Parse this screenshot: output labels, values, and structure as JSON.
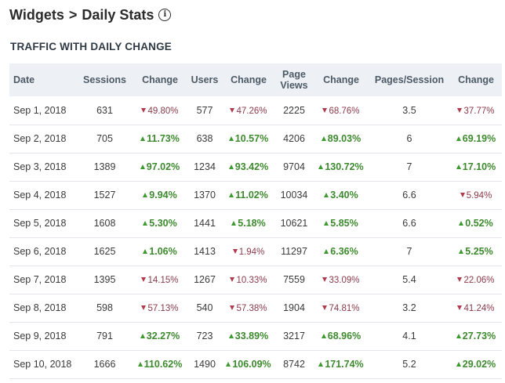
{
  "header": {
    "crumb_parent": "Widgets",
    "crumb_separator": ">",
    "crumb_current": "Daily Stats",
    "info_glyph": "i"
  },
  "section_title": "TRAFFIC WITH DAILY CHANGE",
  "colors": {
    "up": "#3d8a2e",
    "down": "#8a3a4a",
    "header_bg": "#edf1f5"
  },
  "table": {
    "columns": [
      "Date",
      "Sessions",
      "Change",
      "Users",
      "Change",
      "Page Views",
      "Change",
      "Pages/Session",
      "Change"
    ],
    "rows": [
      {
        "date": "Sep 1, 2018",
        "sessions": "631",
        "sessions_chg": "49.80%",
        "sessions_dir": "down",
        "users": "577",
        "users_chg": "47.26%",
        "users_dir": "down",
        "pageviews": "2225",
        "pageviews_chg": "68.76%",
        "pageviews_dir": "down",
        "pps": "3.5",
        "pps_chg": "37.77%",
        "pps_dir": "down"
      },
      {
        "date": "Sep 2, 2018",
        "sessions": "705",
        "sessions_chg": "11.73%",
        "sessions_dir": "up",
        "users": "638",
        "users_chg": "10.57%",
        "users_dir": "up",
        "pageviews": "4206",
        "pageviews_chg": "89.03%",
        "pageviews_dir": "up",
        "pps": "6",
        "pps_chg": "69.19%",
        "pps_dir": "up"
      },
      {
        "date": "Sep 3, 2018",
        "sessions": "1389",
        "sessions_chg": "97.02%",
        "sessions_dir": "up",
        "users": "1234",
        "users_chg": "93.42%",
        "users_dir": "up",
        "pageviews": "9704",
        "pageviews_chg": "130.72%",
        "pageviews_dir": "up",
        "pps": "7",
        "pps_chg": "17.10%",
        "pps_dir": "up"
      },
      {
        "date": "Sep 4, 2018",
        "sessions": "1527",
        "sessions_chg": "9.94%",
        "sessions_dir": "up",
        "users": "1370",
        "users_chg": "11.02%",
        "users_dir": "up",
        "pageviews": "10034",
        "pageviews_chg": "3.40%",
        "pageviews_dir": "up",
        "pps": "6.6",
        "pps_chg": "5.94%",
        "pps_dir": "down"
      },
      {
        "date": "Sep 5, 2018",
        "sessions": "1608",
        "sessions_chg": "5.30%",
        "sessions_dir": "up",
        "users": "1441",
        "users_chg": "5.18%",
        "users_dir": "up",
        "pageviews": "10621",
        "pageviews_chg": "5.85%",
        "pageviews_dir": "up",
        "pps": "6.6",
        "pps_chg": "0.52%",
        "pps_dir": "up"
      },
      {
        "date": "Sep 6, 2018",
        "sessions": "1625",
        "sessions_chg": "1.06%",
        "sessions_dir": "up",
        "users": "1413",
        "users_chg": "1.94%",
        "users_dir": "down",
        "pageviews": "11297",
        "pageviews_chg": "6.36%",
        "pageviews_dir": "up",
        "pps": "7",
        "pps_chg": "5.25%",
        "pps_dir": "up"
      },
      {
        "date": "Sep 7, 2018",
        "sessions": "1395",
        "sessions_chg": "14.15%",
        "sessions_dir": "down",
        "users": "1267",
        "users_chg": "10.33%",
        "users_dir": "down",
        "pageviews": "7559",
        "pageviews_chg": "33.09%",
        "pageviews_dir": "down",
        "pps": "5.4",
        "pps_chg": "22.06%",
        "pps_dir": "down"
      },
      {
        "date": "Sep 8, 2018",
        "sessions": "598",
        "sessions_chg": "57.13%",
        "sessions_dir": "down",
        "users": "540",
        "users_chg": "57.38%",
        "users_dir": "down",
        "pageviews": "1904",
        "pageviews_chg": "74.81%",
        "pageviews_dir": "down",
        "pps": "3.2",
        "pps_chg": "41.24%",
        "pps_dir": "down"
      },
      {
        "date": "Sep 9, 2018",
        "sessions": "791",
        "sessions_chg": "32.27%",
        "sessions_dir": "up",
        "users": "723",
        "users_chg": "33.89%",
        "users_dir": "up",
        "pageviews": "3217",
        "pageviews_chg": "68.96%",
        "pageviews_dir": "up",
        "pps": "4.1",
        "pps_chg": "27.73%",
        "pps_dir": "up"
      },
      {
        "date": "Sep 10, 2018",
        "sessions": "1666",
        "sessions_chg": "110.62%",
        "sessions_dir": "up",
        "users": "1490",
        "users_chg": "106.09%",
        "users_dir": "up",
        "pageviews": "8742",
        "pageviews_chg": "171.74%",
        "pageviews_dir": "up",
        "pps": "5.2",
        "pps_chg": "29.02%",
        "pps_dir": "up"
      }
    ]
  }
}
